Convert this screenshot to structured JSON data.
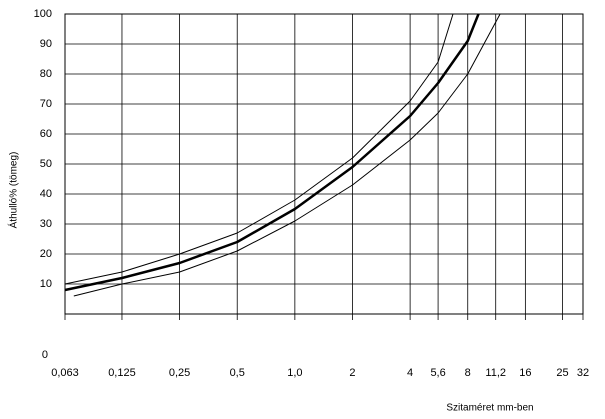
{
  "chart_data": {
    "type": "line",
    "x_label": "Szitaméret mm-ben",
    "y_label": "Áthulló% (tömeg)",
    "xscale": "log",
    "grid": true,
    "xlim": [
      0.063,
      32
    ],
    "ylim": [
      0,
      100
    ],
    "xticks": [
      {
        "value": 0.063,
        "label": "0,063"
      },
      {
        "value": 0.125,
        "label": "0,125"
      },
      {
        "value": 0.25,
        "label": "0,25"
      },
      {
        "value": 0.5,
        "label": "0,5"
      },
      {
        "value": 1.0,
        "label": "1,0"
      },
      2,
      4,
      {
        "value": 5.6,
        "label": "5,6"
      },
      8,
      {
        "value": 11.2,
        "label": "11,2"
      },
      16,
      25,
      32
    ],
    "yticks": [
      0,
      10,
      20,
      30,
      40,
      50,
      60,
      70,
      80,
      90,
      100
    ],
    "series": [
      {
        "color": "#000000",
        "width": 1,
        "x": [
          0.063,
          0.125,
          0.25,
          0.5,
          1,
          2,
          4,
          5.6,
          6.7
        ],
        "values": [
          10,
          14,
          20,
          27,
          38,
          52,
          71,
          84,
          100
        ]
      },
      {
        "color": "#000000",
        "width": 2.5,
        "x": [
          0.063,
          0.125,
          0.25,
          0.5,
          1,
          2,
          4,
          5.6,
          8,
          9.1
        ],
        "values": [
          8,
          12,
          17,
          24,
          35,
          49,
          66,
          77,
          91,
          100
        ]
      },
      {
        "color": "#000000",
        "width": 1,
        "x": [
          0.07,
          0.125,
          0.25,
          0.5,
          1,
          2,
          4,
          5.6,
          8,
          11.8
        ],
        "values": [
          6,
          10,
          14,
          21,
          31,
          43,
          58,
          67,
          80,
          100
        ]
      }
    ]
  }
}
